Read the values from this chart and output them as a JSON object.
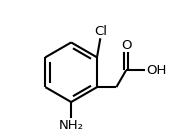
{
  "bg_color": "#ffffff",
  "line_color": "#000000",
  "line_width": 1.5,
  "font_size": 9.5,
  "cl_label": "Cl",
  "nh2_label": "NH₂",
  "o_label": "O",
  "oh_label": "OH"
}
